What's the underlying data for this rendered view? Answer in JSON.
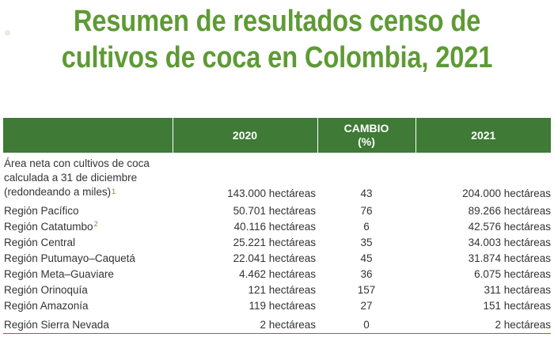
{
  "title_line1": "Resumen de resultados censo de",
  "title_line2": "cultivos de coca en Colombia, 2021",
  "colors": {
    "title_green": "#5e9a35",
    "header_green": "#3f7a36"
  },
  "table": {
    "headers": {
      "col0": "",
      "col1": "2020",
      "col2_line1": "CAMBIO",
      "col2_line2": "(%)",
      "col3": "2021"
    },
    "first_row": {
      "label_line1": "Área neta con cultivos de coca",
      "label_line2": "calculada a 31 de diciembre",
      "label_line3": "(redondeando a miles)",
      "footnote": "1",
      "v2020": "143.000 hectáreas",
      "change": "43",
      "v2021": "204.000 hectáreas"
    },
    "rows": [
      {
        "label": "Región Pacífico",
        "footnote": "",
        "v2020": "50.701 hectáreas",
        "change": "76",
        "v2021": "89.266 hectáreas"
      },
      {
        "label": "Región Catatumbo",
        "footnote": "2",
        "v2020": "40.116 hectáreas",
        "change": "6",
        "v2021": "42.576 hectáreas"
      },
      {
        "label": "Región Central",
        "footnote": "",
        "v2020": "25.221 hectáreas",
        "change": "35",
        "v2021": "34.003 hectáreas"
      },
      {
        "label": "Región Putumayo–Caquetá",
        "footnote": "",
        "v2020": "22.041 hectáreas",
        "change": "45",
        "v2021": "31.874 hectáreas"
      },
      {
        "label": "Región Meta–Guaviare",
        "footnote": "",
        "v2020": "4.462 hectáreas",
        "change": "36",
        "v2021": "6.075 hectáreas"
      },
      {
        "label": "Región Orinoquía",
        "footnote": "",
        "v2020": "121 hectáreas",
        "change": "157",
        "v2021": "311 hectáreas"
      },
      {
        "label": "Región Amazonía",
        "footnote": "",
        "v2020": "119 hectáreas",
        "change": "27",
        "v2021": "151 hectáreas"
      },
      {
        "label": "Región Sierra Nevada",
        "footnote": "",
        "v2020": "2 hectáreas",
        "change": "0",
        "v2021": "2 hectáreas"
      }
    ]
  }
}
